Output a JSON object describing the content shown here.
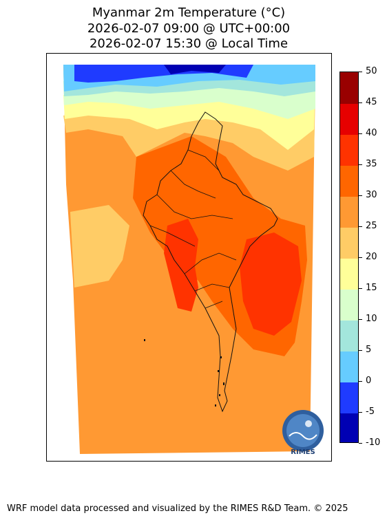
{
  "title": {
    "line1": "Myanmar 2m Temperature (°C)",
    "line2": "2026-02-07 09:00 @ UTC+00:00",
    "line3": "2026-02-07 15:30 @ Local Time"
  },
  "colorbar": {
    "min": -10,
    "max": 50,
    "step": 5,
    "colors": [
      "#0000b3",
      "#1f3bff",
      "#66ccff",
      "#a3e6dc",
      "#d9ffcc",
      "#ffff99",
      "#ffcc66",
      "#ff9933",
      "#ff6600",
      "#ff3300",
      "#e60000",
      "#990000"
    ],
    "tick_labels": [
      "-10",
      "-5",
      "0",
      "5",
      "10",
      "15",
      "20",
      "25",
      "30",
      "35",
      "40",
      "45",
      "50"
    ]
  },
  "logo": {
    "text": "RIMES"
  },
  "footer": "WRF model data processed and visualized by the RIMES R&D Team. © 2025"
}
